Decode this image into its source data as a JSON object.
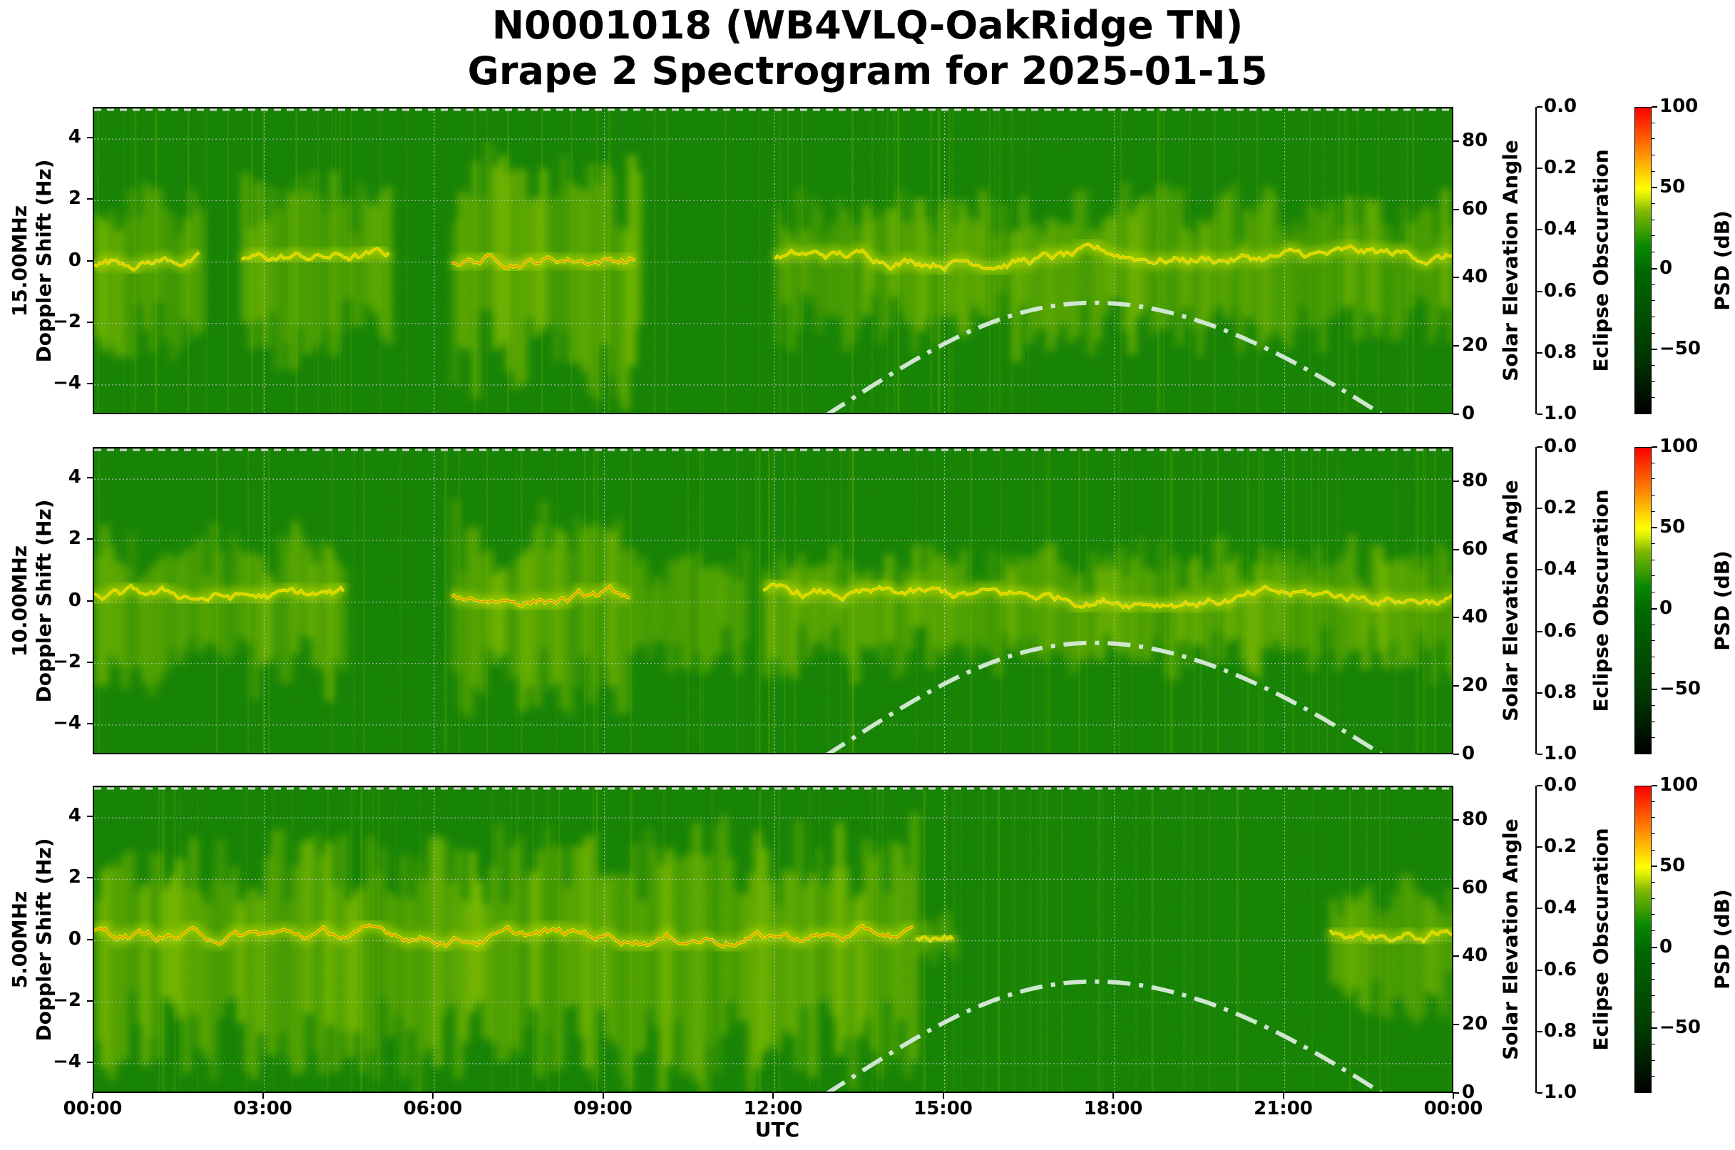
{
  "title": {
    "line1": "N0001018 (WB4VLQ-OakRidge TN)",
    "line2": "Grape 2 Spectrogram for 2025-01-15"
  },
  "colors": {
    "background_green": "#0b7a08",
    "signal_yellow": "#ffff00",
    "signal_lime": "#c8e000",
    "peak_red": "#ff3000",
    "solar_curve": "#cfe6cf",
    "grid": "#c8c8c8"
  },
  "panels": [
    {
      "frequency_label": "15.00MHz",
      "ylabel": "Doppler Shift (Hz)",
      "ylabel_full": "15.00MHz\nDoppler Shift (Hz)"
    },
    {
      "frequency_label": "10.00MHz",
      "ylabel": "Doppler Shift (Hz)",
      "ylabel_full": "10.00MHz\nDoppler Shift (Hz)"
    },
    {
      "frequency_label": "5.00MHz",
      "ylabel": "Doppler Shift (Hz)",
      "ylabel_full": "5.00MHz\nDoppler Shift (Hz)"
    }
  ],
  "axes": {
    "y_ticks": [
      "4",
      "2",
      "0",
      "−2",
      "−4"
    ],
    "solar_ticks": [
      "80",
      "60",
      "40",
      "20",
      "0"
    ],
    "solar_label": "Solar Elevation Angle",
    "eclipse_ticks": [
      "0.0",
      "0.2",
      "0.4",
      "0.6",
      "0.8",
      "1.0"
    ],
    "eclipse_label": "Eclipse Obscuration",
    "cbar_ticks": [
      "100",
      "50",
      "0",
      "−50"
    ],
    "cbar_label": "PSD (dB)",
    "x_ticks": [
      "00:00",
      "03:00",
      "06:00",
      "09:00",
      "12:00",
      "15:00",
      "18:00",
      "21:00",
      "00:00"
    ],
    "x_label": "UTC"
  },
  "chart_data": {
    "type": "heatmap",
    "title": "N0001018 (WB4VLQ-OakRidge TN) Grape 2 Spectrogram for 2025-01-15",
    "subplots": [
      {
        "frequency": "15.00MHz",
        "ylabel": "15.00MHz Doppler Shift (Hz)",
        "ylim": [
          -5,
          5
        ],
        "y_ticks": [
          -4,
          -2,
          0,
          2,
          4
        ],
        "description": "Carrier near 0 Hz visible 00:00-01:45, scattered traces 03:00-05:00, strong activity 06:30-09:30 (peak ~0.3 Hz near 08:00), no signal 09:30-12:00, strong carrier from ~12:00 to 24:00 near 0 to +0.3 Hz with spread"
      },
      {
        "frequency": "10.00MHz",
        "ylabel": "10.00MHz Doppler Shift (Hz)",
        "ylim": [
          -5,
          5
        ],
        "y_ticks": [
          -4,
          -2,
          0,
          2,
          4
        ],
        "description": "Carrier near 0 Hz most of day; strong red traces ~06:30-09:00 near +0.3 Hz dropping to -1 Hz near 09:20; gap ~09:30-12:00; strong carrier 12:00-24:00 near 0 Hz"
      },
      {
        "frequency": "5.00MHz",
        "ylabel": "5.00MHz Doppler Shift (Hz)",
        "ylim": [
          -5,
          5
        ],
        "y_ticks": [
          -4,
          -2,
          0,
          2,
          4
        ],
        "description": "Strong carrier near 0 Hz from 00:00 to ~14:30 with red peaks; fades after 15:00; weak return near 22:00-24:00"
      }
    ],
    "x": {
      "label": "UTC",
      "range": [
        "00:00",
        "24:00"
      ],
      "ticks": [
        "00:00",
        "03:00",
        "06:00",
        "09:00",
        "12:00",
        "15:00",
        "18:00",
        "21:00",
        "00:00"
      ]
    },
    "secondary_axes": {
      "solar_elevation": {
        "label": "Solar Elevation Angle",
        "range": [
          0,
          90
        ],
        "ticks": [
          0,
          20,
          40,
          60,
          80
        ]
      },
      "eclipse_obscuration": {
        "label": "Eclipse Obscuration",
        "range": [
          1.0,
          0.0
        ],
        "ticks": [
          0.0,
          0.2,
          0.4,
          0.6,
          0.8,
          1.0
        ]
      }
    },
    "colorbar": {
      "label": "PSD (dB)",
      "range": [
        -90,
        100
      ],
      "ticks": [
        -50,
        0,
        50,
        100
      ],
      "colormap": [
        "black",
        "dark green",
        "green",
        "yellow",
        "orange",
        "red"
      ]
    },
    "solar_elevation_curve": {
      "style": "dash-dot, light green/white",
      "hours_utc": [
        12.9,
        13.5,
        14.0,
        15.0,
        16.0,
        17.0,
        17.85,
        19.0,
        20.0,
        21.0,
        22.0,
        22.75
      ],
      "elevation_deg": [
        0,
        6.5,
        11.5,
        20.5,
        27.0,
        31.5,
        33.0,
        31.0,
        26.0,
        18.5,
        9.0,
        0
      ]
    },
    "eclipse_obscuration_curve": {
      "values": "0.0 all day (dashed line at top)"
    }
  }
}
